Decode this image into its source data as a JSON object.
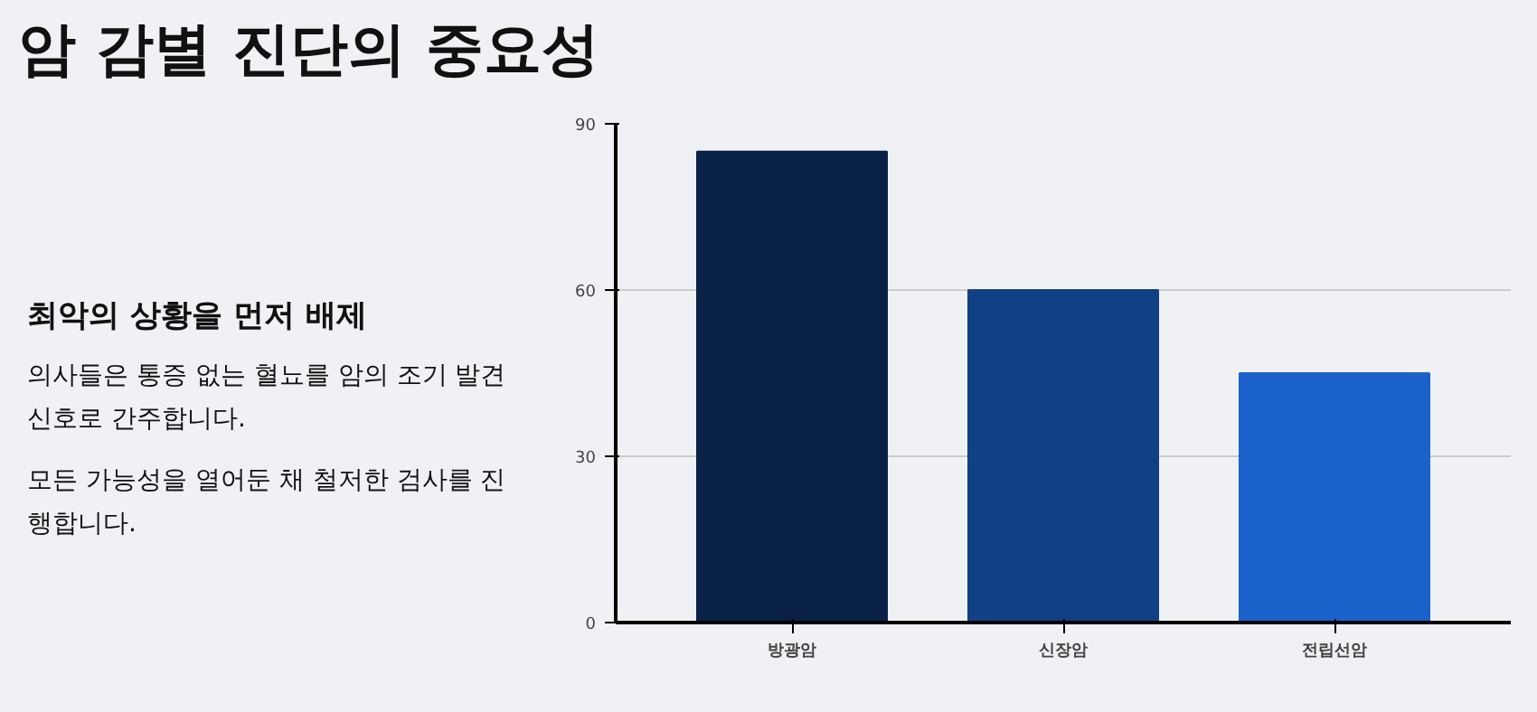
{
  "chart_data": {
    "type": "bar",
    "title": "암 감별 진단의 중요성",
    "subtitle": "최악의 상황을 먼저 배제",
    "annotations": [
      "의사들은 통증 없는 혈뇨를 암의 조기 발견 신호로 간주합니다.",
      "모든 가능성을 열어둔 채 철저한 검사를 진행합니다."
    ],
    "categories": [
      "방광암",
      "신장암",
      "전립선암"
    ],
    "values": [
      85,
      60,
      45
    ],
    "colors": [
      "#0a2147",
      "#114185",
      "#1a62c9"
    ],
    "ylim": [
      0,
      90
    ],
    "yticks": [
      0,
      30,
      60,
      90
    ],
    "grid": "y"
  }
}
